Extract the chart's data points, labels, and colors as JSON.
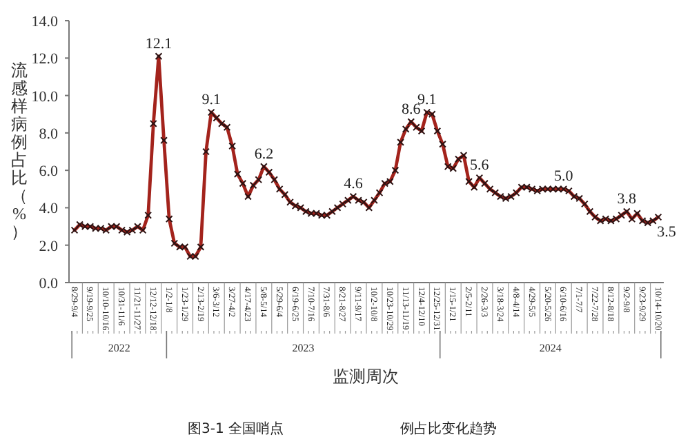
{
  "chart_data": {
    "type": "line",
    "xlabel": "监测周次",
    "ylabel": "流感样病例占比（%）",
    "categories": [
      "8/29-9/4",
      null,
      null,
      "9/19-9/25",
      null,
      null,
      "10/10-10/16",
      null,
      null,
      "10/31-11/6",
      null,
      null,
      "11/21-11/27",
      null,
      null,
      "12/12-12/18",
      null,
      null,
      "1/2-1/8",
      null,
      null,
      "1/23-1/29",
      null,
      null,
      "2/13-2/19",
      null,
      null,
      "3/6-3/12",
      null,
      null,
      "3/27-4/2",
      null,
      null,
      "4/17-4/23",
      null,
      null,
      "5/8-5/14",
      null,
      null,
      "5/29-6/4",
      null,
      null,
      "6/19-6/25",
      null,
      null,
      "7/10-7/16",
      null,
      null,
      "7/31-8/6",
      null,
      null,
      "8/21-8/27",
      null,
      null,
      "9/11-9/17",
      null,
      null,
      "10/2-10/8",
      null,
      null,
      "10/23-10/29",
      null,
      null,
      "11/13-11/19",
      null,
      null,
      "12/4-12/10",
      null,
      null,
      "12/25-12/31",
      null,
      null,
      "1/15-1/21",
      null,
      null,
      "2/5-2/11",
      null,
      null,
      "2/26-3/3",
      null,
      null,
      "3/18-3/24",
      null,
      null,
      "4/8-4/14",
      null,
      null,
      "4/29-5/5",
      null,
      null,
      "5/20-5/26",
      null,
      null,
      "6/10-6/16",
      null,
      null,
      "7/1-7/7",
      null,
      null,
      "7/22-7/28",
      null,
      null,
      "8/12-8/18",
      null,
      null,
      "9/2-9/8",
      null,
      null,
      "9/23-9/29",
      null,
      null,
      "10/14-10/20"
    ],
    "series": [
      {
        "color": "#a3231c",
        "values": [
          2.8,
          3.1,
          3.0,
          3.0,
          2.9,
          2.9,
          2.8,
          3.0,
          3.0,
          2.8,
          2.7,
          2.8,
          3.0,
          2.8,
          3.6,
          8.5,
          12.1,
          7.6,
          3.4,
          2.1,
          1.9,
          1.9,
          1.4,
          1.4,
          1.9,
          7.0,
          9.1,
          8.8,
          8.5,
          8.3,
          7.3,
          5.8,
          5.3,
          4.6,
          5.2,
          5.5,
          6.2,
          5.9,
          5.5,
          5.0,
          4.7,
          4.3,
          4.1,
          4.0,
          3.8,
          3.7,
          3.7,
          3.6,
          3.6,
          3.8,
          4.0,
          4.2,
          4.4,
          4.6,
          4.4,
          4.3,
          4.0,
          4.4,
          4.8,
          5.3,
          5.4,
          6.0,
          7.5,
          8.2,
          8.6,
          8.3,
          8.1,
          9.1,
          9.0,
          8.1,
          7.4,
          6.2,
          6.1,
          6.6,
          6.8,
          5.4,
          5.1,
          5.6,
          5.3,
          5.0,
          4.8,
          4.6,
          4.5,
          4.6,
          4.8,
          5.1,
          5.1,
          5.0,
          4.9,
          5.0,
          5.0,
          5.0,
          5.0,
          5.0,
          4.9,
          4.6,
          4.5,
          4.2,
          3.8,
          3.5,
          3.3,
          3.4,
          3.3,
          3.4,
          3.6,
          3.8,
          3.4,
          3.7,
          3.3,
          3.2,
          3.3,
          3.5
        ],
        "value_labels": [
          null,
          null,
          null,
          null,
          null,
          null,
          null,
          null,
          null,
          null,
          null,
          null,
          null,
          null,
          null,
          null,
          "12.1",
          null,
          null,
          null,
          null,
          null,
          null,
          null,
          null,
          null,
          "9.1",
          null,
          null,
          null,
          null,
          null,
          null,
          null,
          null,
          null,
          "6.2",
          null,
          null,
          null,
          null,
          null,
          null,
          null,
          null,
          null,
          null,
          null,
          null,
          null,
          null,
          null,
          null,
          "4.6",
          null,
          null,
          null,
          null,
          null,
          null,
          null,
          null,
          null,
          null,
          "8.6",
          null,
          null,
          "9.1",
          null,
          null,
          null,
          null,
          null,
          null,
          null,
          null,
          null,
          "5.6",
          null,
          null,
          null,
          null,
          null,
          null,
          null,
          null,
          null,
          null,
          null,
          null,
          null,
          null,
          null,
          "5.0",
          null,
          null,
          null,
          null,
          null,
          null,
          null,
          null,
          null,
          null,
          null,
          "3.8",
          null,
          null,
          null,
          null,
          null,
          "3.5"
        ]
      }
    ],
    "ylim": [
      0,
      14
    ],
    "yticks": [
      {
        "value": 0,
        "label": "0.0"
      },
      {
        "value": 2,
        "label": "2.0"
      },
      {
        "value": 4,
        "label": "4.0"
      },
      {
        "value": 6,
        "label": "6.0"
      },
      {
        "value": 8,
        "label": "8.0"
      },
      {
        "value": 10,
        "label": "10.0"
      },
      {
        "value": 12,
        "label": "12.0"
      },
      {
        "value": 14,
        "label": "14.0"
      }
    ],
    "marker": "cross",
    "annotations": [
      "2022",
      "2023",
      "2024",
      "图3-1 全国哨点",
      "例占比变化趋势"
    ]
  }
}
